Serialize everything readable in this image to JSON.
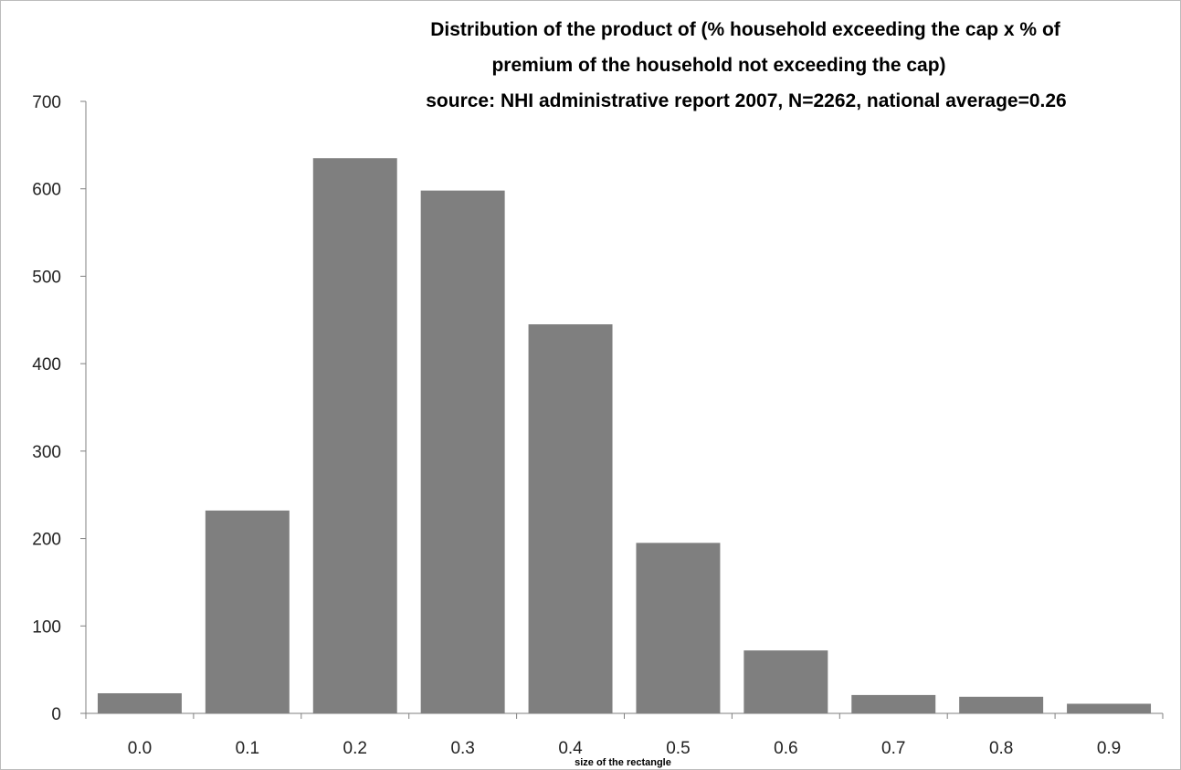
{
  "chart_data": {
    "type": "bar",
    "title_lines": [
      "Distribution of the product of (% household exceeding the cap x % of",
      "premium of the household not exceeding the cap)",
      "source: NHI  administrative report 2007,  N=2262, national average=0.26"
    ],
    "xlabel": "size of the  rectangle",
    "ylabel": "",
    "categories": [
      "0.0",
      "0.1",
      "0.2",
      "0.3",
      "0.4",
      "0.5",
      "0.6",
      "0.7",
      "0.8",
      "0.9"
    ],
    "values": [
      23,
      232,
      635,
      598,
      445,
      195,
      72,
      21,
      19,
      11
    ],
    "ylim": [
      0,
      700
    ],
    "yticks": [
      0,
      100,
      200,
      300,
      400,
      500,
      600,
      700
    ],
    "grid": false,
    "legend": "none",
    "bar_color": "#7f7f7f",
    "axis_color": "#7f7f7f"
  }
}
